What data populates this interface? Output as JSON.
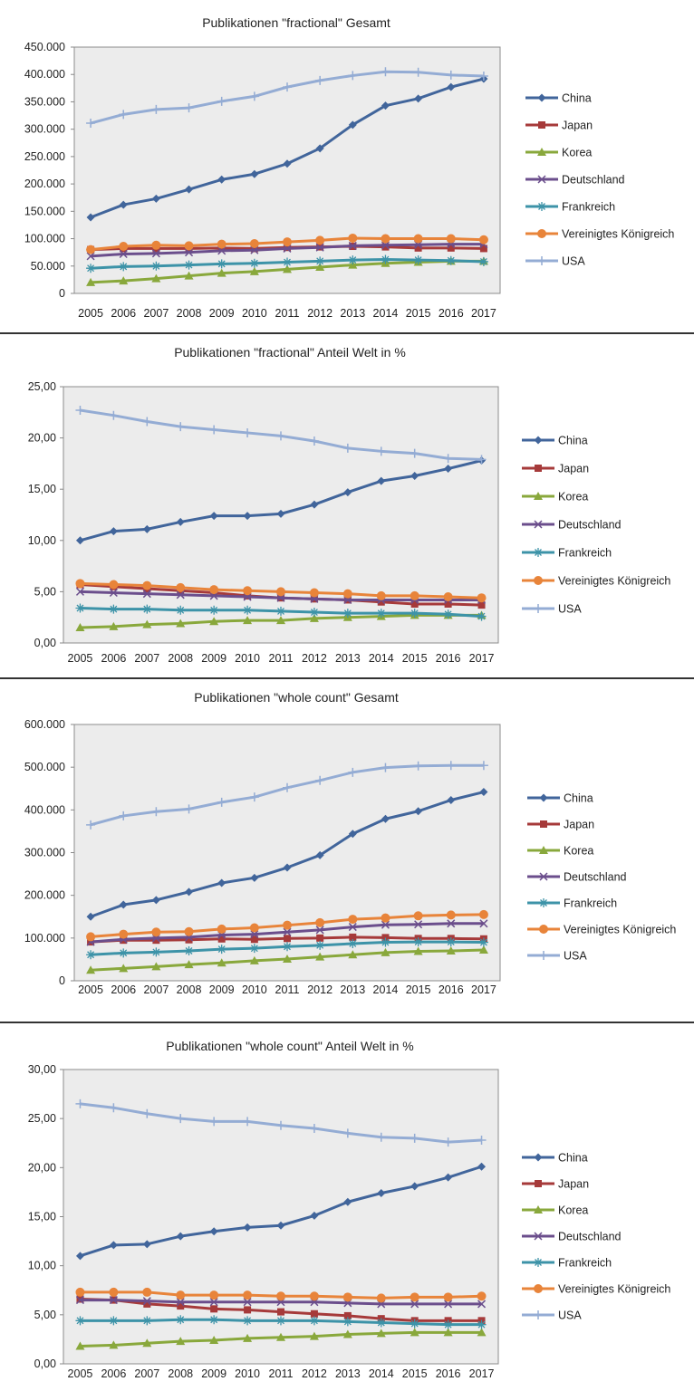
{
  "colors": {
    "China": "#41659b",
    "Japan": "#a63a3a",
    "Korea": "#89a83c",
    "Deutschland": "#6b4e8c",
    "Frankreich": "#3d93a8",
    "Vereinigtes Königreich": "#e8843a",
    "USA": "#94acd4",
    "plot_bg": "#ececec",
    "plot_border": "#8c8c8c"
  },
  "markers": {
    "China": "diamond",
    "Japan": "square",
    "Korea": "triangle",
    "Deutschland": "x",
    "Frankreich": "star",
    "Vereinigtes Königreich": "circle",
    "USA": "plus"
  },
  "chart_data": [
    {
      "type": "line",
      "title": "Publikationen \"fractional\" Gesamt",
      "categories": [
        "2005",
        "2006",
        "2007",
        "2008",
        "2009",
        "2010",
        "2011",
        "2012",
        "2013",
        "2014",
        "2015",
        "2016",
        "2017"
      ],
      "ylim": [
        0,
        450000
      ],
      "yticks": [
        "0",
        "50.000",
        "100.000",
        "150.000",
        "200.000",
        "250.000",
        "300.000",
        "350.000",
        "400.000",
        "450.000"
      ],
      "legend_position": "right",
      "grid": false,
      "series": [
        {
          "name": "China",
          "values": [
            139000,
            162000,
            173000,
            190000,
            208000,
            218000,
            237000,
            265000,
            308000,
            343000,
            356000,
            377000,
            392000
          ]
        },
        {
          "name": "Japan",
          "values": [
            80000,
            82000,
            82000,
            82000,
            83000,
            82000,
            84000,
            85000,
            86000,
            85000,
            83000,
            83000,
            82000
          ]
        },
        {
          "name": "Korea",
          "values": [
            20000,
            23000,
            27000,
            32000,
            37000,
            40000,
            44000,
            48000,
            52000,
            55000,
            57000,
            59000,
            59000
          ]
        },
        {
          "name": "Deutschland",
          "values": [
            68000,
            72000,
            73000,
            75000,
            78000,
            79000,
            82000,
            84000,
            87000,
            88000,
            89000,
            90000,
            90000
          ]
        },
        {
          "name": "Frankreich",
          "values": [
            46000,
            49000,
            50000,
            52000,
            54000,
            55000,
            57000,
            59000,
            61000,
            62000,
            61000,
            60000,
            58000
          ]
        },
        {
          "name": "Vereinigtes Königreich",
          "values": [
            80000,
            86000,
            88000,
            87000,
            90000,
            91000,
            94000,
            97000,
            101000,
            100000,
            100000,
            100000,
            98000
          ]
        },
        {
          "name": "USA",
          "values": [
            311000,
            327000,
            336000,
            339000,
            351000,
            360000,
            377000,
            389000,
            398000,
            405000,
            404000,
            399000,
            397000
          ]
        }
      ]
    },
    {
      "type": "line",
      "title": "Publikationen \"fractional\" Anteil Welt in %",
      "categories": [
        "2005",
        "2006",
        "2007",
        "2008",
        "2009",
        "2010",
        "2011",
        "2012",
        "2013",
        "2014",
        "2015",
        "2016",
        "2017"
      ],
      "ylim": [
        0,
        25
      ],
      "yticks": [
        "0,00",
        "5,00",
        "10,00",
        "15,00",
        "20,00",
        "25,00"
      ],
      "legend_position": "right",
      "grid": false,
      "series": [
        {
          "name": "China",
          "values": [
            10.0,
            10.9,
            11.1,
            11.8,
            12.4,
            12.4,
            12.6,
            13.5,
            14.7,
            15.8,
            16.3,
            17.0,
            17.8
          ]
        },
        {
          "name": "Japan",
          "values": [
            5.7,
            5.5,
            5.3,
            5.1,
            4.9,
            4.6,
            4.4,
            4.3,
            4.2,
            4.0,
            3.8,
            3.8,
            3.7
          ]
        },
        {
          "name": "Korea",
          "values": [
            1.5,
            1.6,
            1.8,
            1.9,
            2.1,
            2.2,
            2.2,
            2.4,
            2.5,
            2.6,
            2.7,
            2.7,
            2.7
          ]
        },
        {
          "name": "Deutschland",
          "values": [
            5.0,
            4.9,
            4.8,
            4.7,
            4.6,
            4.5,
            4.4,
            4.3,
            4.2,
            4.2,
            4.2,
            4.2,
            4.2
          ]
        },
        {
          "name": "Frankreich",
          "values": [
            3.4,
            3.3,
            3.3,
            3.2,
            3.2,
            3.2,
            3.1,
            3.0,
            2.9,
            2.9,
            2.9,
            2.8,
            2.6
          ]
        },
        {
          "name": "Vereinigtes Königreich",
          "values": [
            5.8,
            5.7,
            5.6,
            5.4,
            5.2,
            5.1,
            5.0,
            4.9,
            4.8,
            4.6,
            4.6,
            4.5,
            4.4
          ]
        },
        {
          "name": "USA",
          "values": [
            22.7,
            22.2,
            21.6,
            21.1,
            20.8,
            20.5,
            20.2,
            19.7,
            19.0,
            18.7,
            18.5,
            18.0,
            17.9
          ]
        }
      ]
    },
    {
      "type": "line",
      "title": "Publikationen \"whole count\" Gesamt",
      "categories": [
        "2005",
        "2006",
        "2007",
        "2008",
        "2009",
        "2010",
        "2011",
        "2012",
        "2013",
        "2014",
        "2015",
        "2016",
        "2017"
      ],
      "ylim": [
        0,
        600000
      ],
      "yticks": [
        "0",
        "100.000",
        "200.000",
        "300.000",
        "400.000",
        "500.000",
        "600.000"
      ],
      "legend_position": "right",
      "grid": false,
      "series": [
        {
          "name": "China",
          "values": [
            150000,
            178000,
            189000,
            208000,
            229000,
            241000,
            265000,
            294000,
            344000,
            379000,
            397000,
            423000,
            442000
          ]
        },
        {
          "name": "Japan",
          "values": [
            91000,
            95000,
            95000,
            96000,
            98000,
            97000,
            99000,
            100000,
            102000,
            101000,
            99000,
            99000,
            98000
          ]
        },
        {
          "name": "Korea",
          "values": [
            25000,
            29000,
            33000,
            38000,
            42000,
            47000,
            51000,
            56000,
            61000,
            66000,
            69000,
            70000,
            72000
          ]
        },
        {
          "name": "Deutschland",
          "values": [
            91000,
            97000,
            100000,
            102000,
            107000,
            109000,
            114000,
            119000,
            126000,
            131000,
            132000,
            134000,
            134000
          ]
        },
        {
          "name": "Frankreich",
          "values": [
            61000,
            65000,
            67000,
            70000,
            74000,
            76000,
            80000,
            83000,
            87000,
            90000,
            91000,
            91000,
            90000
          ]
        },
        {
          "name": "Vereinigtes Königreich",
          "values": [
            103000,
            109000,
            114000,
            115000,
            121000,
            124000,
            130000,
            136000,
            144000,
            147000,
            152000,
            154000,
            155000
          ]
        },
        {
          "name": "USA",
          "values": [
            365000,
            386000,
            396000,
            402000,
            418000,
            430000,
            452000,
            469000,
            488000,
            499000,
            503000,
            504000,
            504000
          ]
        }
      ]
    },
    {
      "type": "line",
      "title": "Publikationen \"whole count\" Anteil Welt in %",
      "categories": [
        "2005",
        "2006",
        "2007",
        "2008",
        "2009",
        "2010",
        "2011",
        "2012",
        "2013",
        "2014",
        "2015",
        "2016",
        "2017"
      ],
      "ylim": [
        0,
        30
      ],
      "yticks": [
        "0,00",
        "5,00",
        "10,00",
        "15,00",
        "20,00",
        "25,00",
        "30,00"
      ],
      "legend_position": "right",
      "grid": false,
      "series": [
        {
          "name": "China",
          "values": [
            11.0,
            12.1,
            12.2,
            13.0,
            13.5,
            13.9,
            14.1,
            15.1,
            16.5,
            17.4,
            18.1,
            19.0,
            20.1
          ]
        },
        {
          "name": "Japan",
          "values": [
            6.6,
            6.5,
            6.1,
            5.9,
            5.6,
            5.5,
            5.3,
            5.1,
            4.9,
            4.6,
            4.4,
            4.4,
            4.4
          ]
        },
        {
          "name": "Korea",
          "values": [
            1.8,
            1.9,
            2.1,
            2.3,
            2.4,
            2.6,
            2.7,
            2.8,
            3.0,
            3.1,
            3.2,
            3.2,
            3.2
          ]
        },
        {
          "name": "Deutschland",
          "values": [
            6.5,
            6.5,
            6.4,
            6.3,
            6.3,
            6.3,
            6.3,
            6.3,
            6.2,
            6.1,
            6.1,
            6.1,
            6.1
          ]
        },
        {
          "name": "Frankreich",
          "values": [
            4.4,
            4.4,
            4.4,
            4.5,
            4.5,
            4.4,
            4.4,
            4.4,
            4.3,
            4.2,
            4.1,
            4.0,
            4.0
          ]
        },
        {
          "name": "Vereinigtes Königreich",
          "values": [
            7.3,
            7.3,
            7.3,
            7.0,
            7.0,
            7.0,
            6.9,
            6.9,
            6.8,
            6.7,
            6.8,
            6.8,
            6.9
          ]
        },
        {
          "name": "USA",
          "values": [
            26.5,
            26.1,
            25.5,
            25.0,
            24.7,
            24.7,
            24.3,
            24.0,
            23.5,
            23.1,
            23.0,
            22.6,
            22.8
          ]
        }
      ]
    }
  ]
}
